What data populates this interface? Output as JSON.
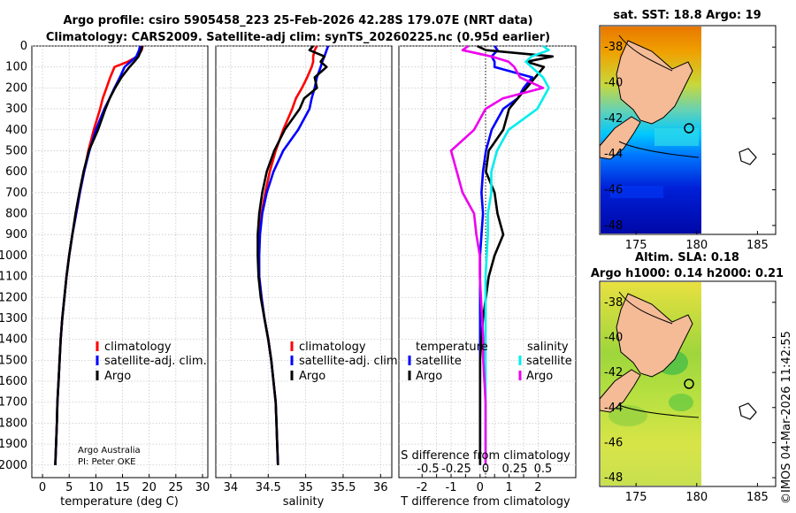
{
  "header": {
    "line1": "Argo profile: csiro 5905458_223 25-Feb-2026 42.28S 179.07E (NRT data)",
    "line2": "Climatology: CARS2009. Satellite-adj clim: synTS_20260225.nc (0.95d earlier)"
  },
  "credit": {
    "line1": "Argo Australia",
    "line2": "PI: Peter OKE"
  },
  "stamp": "©IMOS 04-Mar-2026 11:42:55",
  "colors": {
    "climatology": "#ff0000",
    "satellite": "#0000ff",
    "argo": "#000000",
    "sat_t": "#00eeee",
    "clim_s": "#ee00ee",
    "land": "#f4bb96"
  },
  "depth_axis": {
    "ylim": [
      0,
      2060
    ],
    "ticks": [
      0,
      100,
      200,
      300,
      400,
      500,
      600,
      700,
      800,
      900,
      1000,
      1100,
      1200,
      1300,
      1400,
      1500,
      1600,
      1700,
      1800,
      1900,
      2000
    ]
  },
  "chart_data": [
    {
      "type": "line",
      "name": "temperature",
      "xlabel": "temperature (deg C)",
      "xlim": [
        -2,
        31
      ],
      "xticks": [
        0,
        5,
        10,
        15,
        20,
        25,
        30
      ],
      "legend": [
        "climatology",
        "satellite-adj. clim.",
        "Argo"
      ],
      "depth": [
        0,
        20,
        50,
        75,
        100,
        150,
        200,
        250,
        300,
        400,
        500,
        600,
        700,
        800,
        900,
        1000,
        1100,
        1200,
        1300,
        1400,
        1500,
        1600,
        1700,
        1800,
        1900,
        2000
      ],
      "series": [
        {
          "name": "climatology",
          "values": [
            18.8,
            18.6,
            17.8,
            16,
            13.5,
            12.7,
            12.0,
            11.3,
            10.8,
            9.6,
            8.6,
            7.8,
            7.0,
            6.3,
            5.6,
            5.0,
            4.5,
            4.1,
            3.7,
            3.4,
            3.2,
            3.0,
            2.8,
            2.7,
            2.55,
            2.4
          ]
        },
        {
          "name": "satellite-adj. clim.",
          "values": [
            18.3,
            18.1,
            17.6,
            16.5,
            15.4,
            14.5,
            13.5,
            12.6,
            11.6,
            10.0,
            8.8,
            7.8,
            7.0,
            6.3,
            5.6,
            5.0,
            4.5,
            4.1,
            3.7,
            3.4,
            3.2,
            3.0,
            2.8,
            2.7,
            2.55,
            2.4
          ]
        },
        {
          "name": "Argo",
          "values": [
            18.7,
            18.5,
            18.0,
            17.2,
            16.3,
            14.8,
            13.6,
            12.6,
            11.8,
            10.4,
            8.7,
            7.7,
            6.9,
            6.2,
            5.6,
            5.0,
            4.5,
            4.1,
            3.7,
            3.4,
            3.2,
            3.0,
            2.8,
            2.7,
            2.55,
            2.4
          ]
        }
      ]
    },
    {
      "type": "line",
      "name": "salinity",
      "xlabel": "salinity",
      "xlim": [
        33.8,
        36.15
      ],
      "xticks": [
        34,
        34.5,
        35,
        35.5,
        36
      ],
      "legend": [
        "climatology",
        "satellite-adj. clim.",
        "Argo"
      ],
      "depth": [
        0,
        20,
        50,
        75,
        100,
        150,
        200,
        250,
        300,
        400,
        500,
        600,
        700,
        800,
        900,
        1000,
        1100,
        1200,
        1300,
        1400,
        1500,
        1600,
        1700,
        1800,
        1900,
        2000
      ],
      "series": [
        {
          "name": "climatology",
          "values": [
            35.15,
            35.12,
            35.1,
            35.1,
            35.08,
            35.02,
            34.95,
            34.87,
            34.82,
            34.7,
            34.6,
            34.52,
            34.46,
            34.41,
            34.38,
            34.37,
            34.38,
            34.41,
            34.45,
            34.5,
            34.54,
            34.57,
            34.6,
            34.61,
            34.62,
            34.63
          ]
        },
        {
          "name": "satellite-adj. clim.",
          "values": [
            35.3,
            35.28,
            35.25,
            35.22,
            35.2,
            35.15,
            35.12,
            35.08,
            35.05,
            34.9,
            34.7,
            34.57,
            34.48,
            34.42,
            34.39,
            34.38,
            34.38,
            34.41,
            34.45,
            34.5,
            34.54,
            34.57,
            34.6,
            34.61,
            34.62,
            34.63
          ]
        },
        {
          "name": "Argo",
          "values": [
            35.1,
            35.05,
            35.25,
            35.2,
            35.28,
            35.12,
            35.15,
            34.98,
            34.92,
            34.72,
            34.58,
            34.48,
            34.42,
            34.38,
            34.36,
            34.36,
            34.37,
            34.4,
            34.45,
            34.5,
            34.54,
            34.57,
            34.6,
            34.61,
            34.62,
            34.63
          ]
        }
      ]
    },
    {
      "type": "line",
      "name": "difference",
      "xlabel": "T difference from climatology",
      "xlim": [
        -2.8,
        3.3
      ],
      "xticks": [
        -2,
        -1.5,
        -1,
        -0.5,
        0,
        0.5,
        1,
        1.5,
        2
      ],
      "xtick_labels": [
        "-2",
        "",
        "-1",
        "",
        "0",
        "",
        "1",
        "",
        "2"
      ],
      "s_label": "S difference from climatology",
      "s_ticks": [
        "-0.5",
        "-0.25",
        "0",
        "0.25",
        "0.5"
      ],
      "legend_headers": [
        "temperature",
        "salinity"
      ],
      "legend": [
        "satellite",
        "Argo",
        "satellite",
        "Argo"
      ],
      "depth": [
        0,
        20,
        50,
        75,
        100,
        150,
        200,
        250,
        300,
        400,
        500,
        600,
        700,
        800,
        900,
        1000,
        1100,
        1200,
        1300,
        1400,
        1500,
        1600,
        1700,
        1800,
        1900,
        2000
      ],
      "series": [
        {
          "name": "T satellite",
          "values": [
            0.5,
            0.6,
            0.4,
            0.5,
            0.5,
            1.8,
            1.5,
            1.3,
            0.8,
            0.4,
            0.2,
            0.1,
            0.05,
            0.1,
            0.05,
            0,
            0,
            0,
            0,
            0,
            0,
            0,
            0,
            0,
            0,
            0
          ]
        },
        {
          "name": "T Argo",
          "values": [
            -0.1,
            0.2,
            2.5,
            1.6,
            2.2,
            1.9,
            1.6,
            1.3,
            1.0,
            0.8,
            0.3,
            0.2,
            0.5,
            0.6,
            0.8,
            0.5,
            0.3,
            0.2,
            0.1,
            0.05,
            0,
            0,
            0,
            0,
            0,
            0
          ]
        },
        {
          "name": "S satellite",
          "values": [
            0.5,
            0.55,
            0.4,
            0.35,
            0.4,
            0.5,
            0.55,
            0.5,
            0.45,
            0.2,
            0.1,
            0.05,
            0.05,
            0.02,
            0.02,
            0.01,
            0,
            0,
            0,
            0,
            0,
            0,
            0,
            0,
            0,
            0
          ]
        },
        {
          "name": "S Argo",
          "values": [
            -0.15,
            -0.2,
            0.05,
            0.2,
            0.25,
            0.3,
            0.5,
            0.15,
            0.0,
            -0.1,
            -0.3,
            -0.25,
            -0.2,
            -0.1,
            -0.08,
            -0.05,
            -0.05,
            -0.04,
            -0.03,
            -0.02,
            -0.02,
            -0.01,
            0,
            0,
            0,
            0
          ]
        }
      ]
    },
    {
      "type": "heatmap",
      "name": "sst_map",
      "title": "sat. SST: 18.8 Argo: 19",
      "xlim": [
        172,
        186.5
      ],
      "ylim": [
        -48.5,
        -36.8
      ],
      "xticks": [
        175,
        180,
        185
      ],
      "yticks": [
        -38,
        -40,
        -42,
        -44,
        -46,
        -48
      ]
    },
    {
      "type": "heatmap",
      "name": "sla_map",
      "title1": "Altim. SLA: 0.18",
      "title2": "Argo h1000: 0.14 h2000: 0.21",
      "xlim": [
        172,
        186.5
      ],
      "ylim": [
        -48.5,
        -36.8
      ],
      "xticks": [
        175,
        180,
        185
      ],
      "yticks": [
        -38,
        -40,
        -42,
        -44,
        -46,
        -48
      ]
    }
  ]
}
